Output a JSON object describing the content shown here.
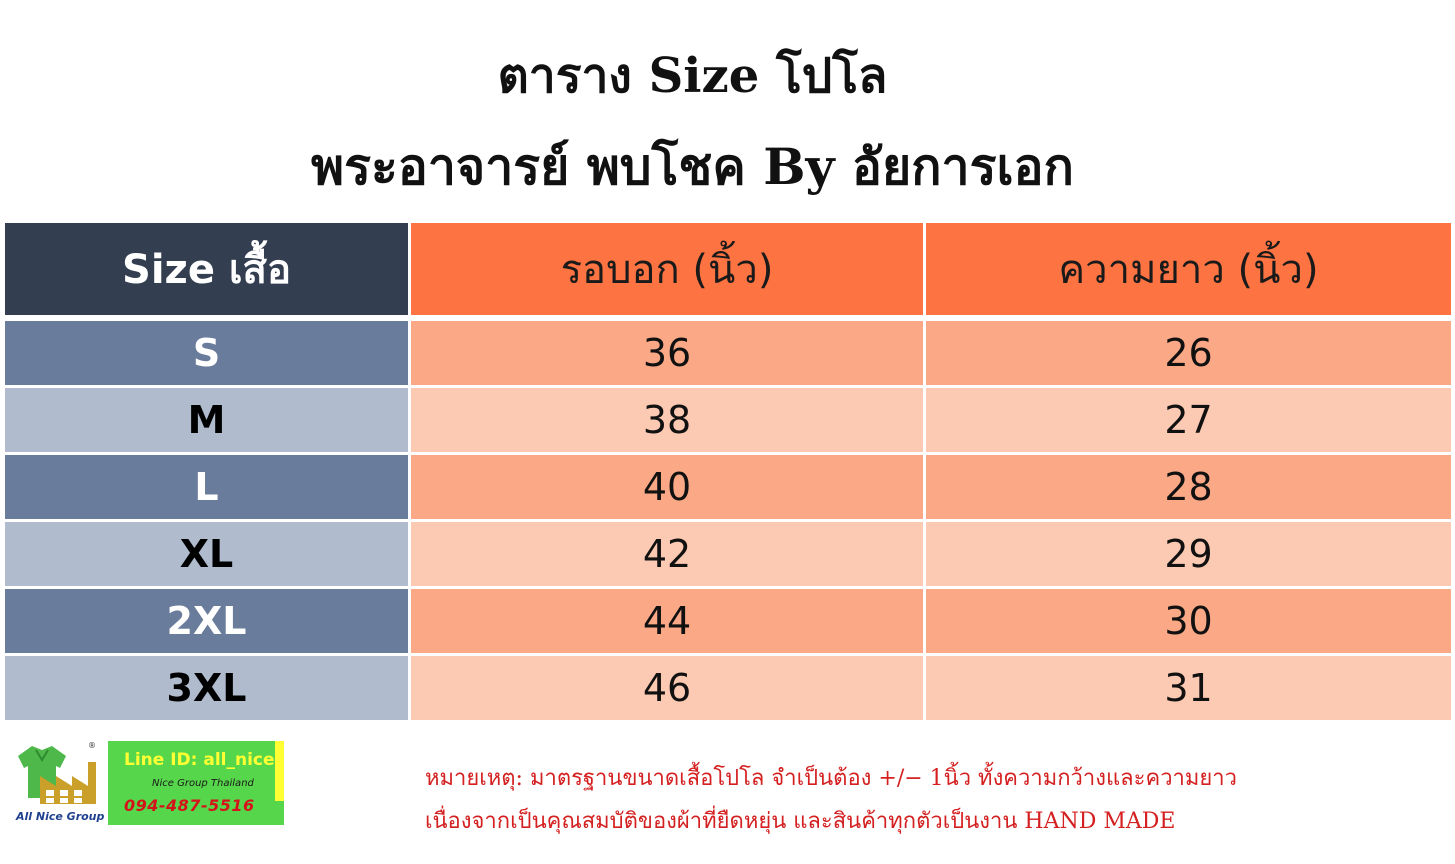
{
  "title": {
    "line1": "ตาราง Size โปโล",
    "line2": "พระอาจารย์ พบโชค By อัยการเอก"
  },
  "table": {
    "headers": [
      "Size เสื้อ",
      "รอบอก (นิ้ว)",
      "ความยาว (นิ้ว)"
    ],
    "rows": [
      {
        "size": "S",
        "chest": "36",
        "length": "26"
      },
      {
        "size": "M",
        "chest": "38",
        "length": "27"
      },
      {
        "size": "L",
        "chest": "40",
        "length": "28"
      },
      {
        "size": "XL",
        "chest": "42",
        "length": "29"
      },
      {
        "size": "2XL",
        "chest": "44",
        "length": "30"
      },
      {
        "size": "3XL",
        "chest": "46",
        "length": "31"
      }
    ]
  },
  "logo": {
    "icon": "factory-shirt-logo-icon",
    "label": "All Nice Group"
  },
  "contact": {
    "line_id": "Line ID: all_nice",
    "group": "Nice Group Thailand",
    "phone": "094-487-5516"
  },
  "note": {
    "line1": "หมายเหตุ: มาตรฐานขนาดเสื้อโปโล จำเป็นต้อง +/− 1นิ้ว ทั้งความกว้างและความยาว",
    "line2": "เนื่องจากเป็นคุณสมบัติของผ้าที่ยืดหยุ่น และสินค้าทุกตัวเป็นงาน HAND MADE"
  },
  "colors": {
    "header_dark": "#333e50",
    "header_orange": "#fd7442",
    "row_size_dark": "#6a7c9b",
    "row_size_light": "#b0bbce",
    "row_val_dark": "#faa886",
    "row_val_light": "#fcc9b2",
    "note_red": "#d42020"
  }
}
